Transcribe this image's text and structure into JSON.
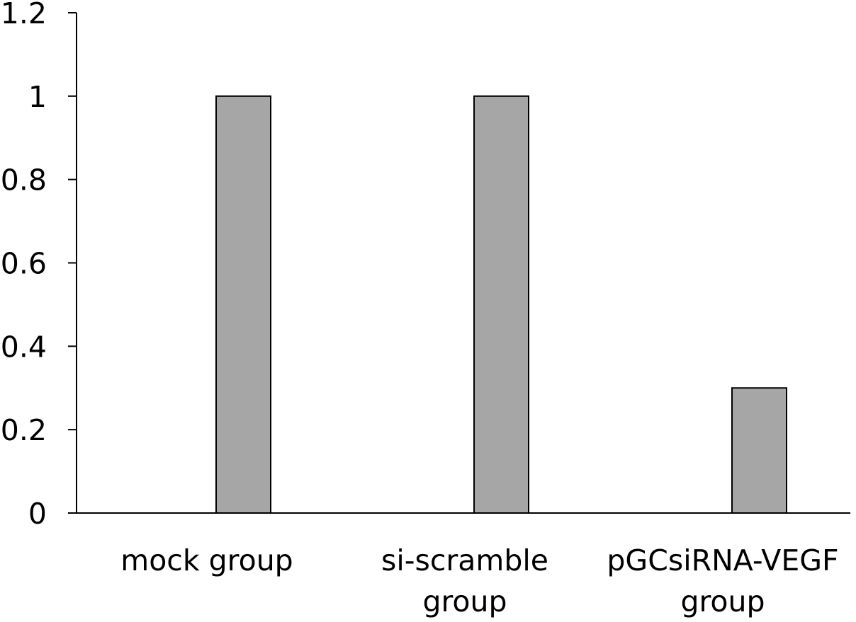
{
  "chart_data": {
    "type": "bar",
    "title": "",
    "xlabel": "",
    "ylabel": "",
    "categories": [
      [
        "mock group"
      ],
      [
        "si-scramble",
        "group"
      ],
      [
        "pGCsiRNA-VEGF",
        "group"
      ]
    ],
    "values": [
      1.0,
      1.0,
      0.3
    ],
    "ylim": [
      0,
      1.2
    ],
    "yticks": [
      0,
      0.2,
      0.4,
      0.6,
      0.8,
      1,
      1.2
    ],
    "ytick_labels": [
      "0",
      "0.2",
      "0.4",
      "0.6",
      "0.8",
      "1",
      "1.2"
    ],
    "grid": false,
    "legend": "none",
    "bar_color": "#a6a6a6",
    "bar_edge_color": "#000000",
    "axis_color": "#000000"
  }
}
